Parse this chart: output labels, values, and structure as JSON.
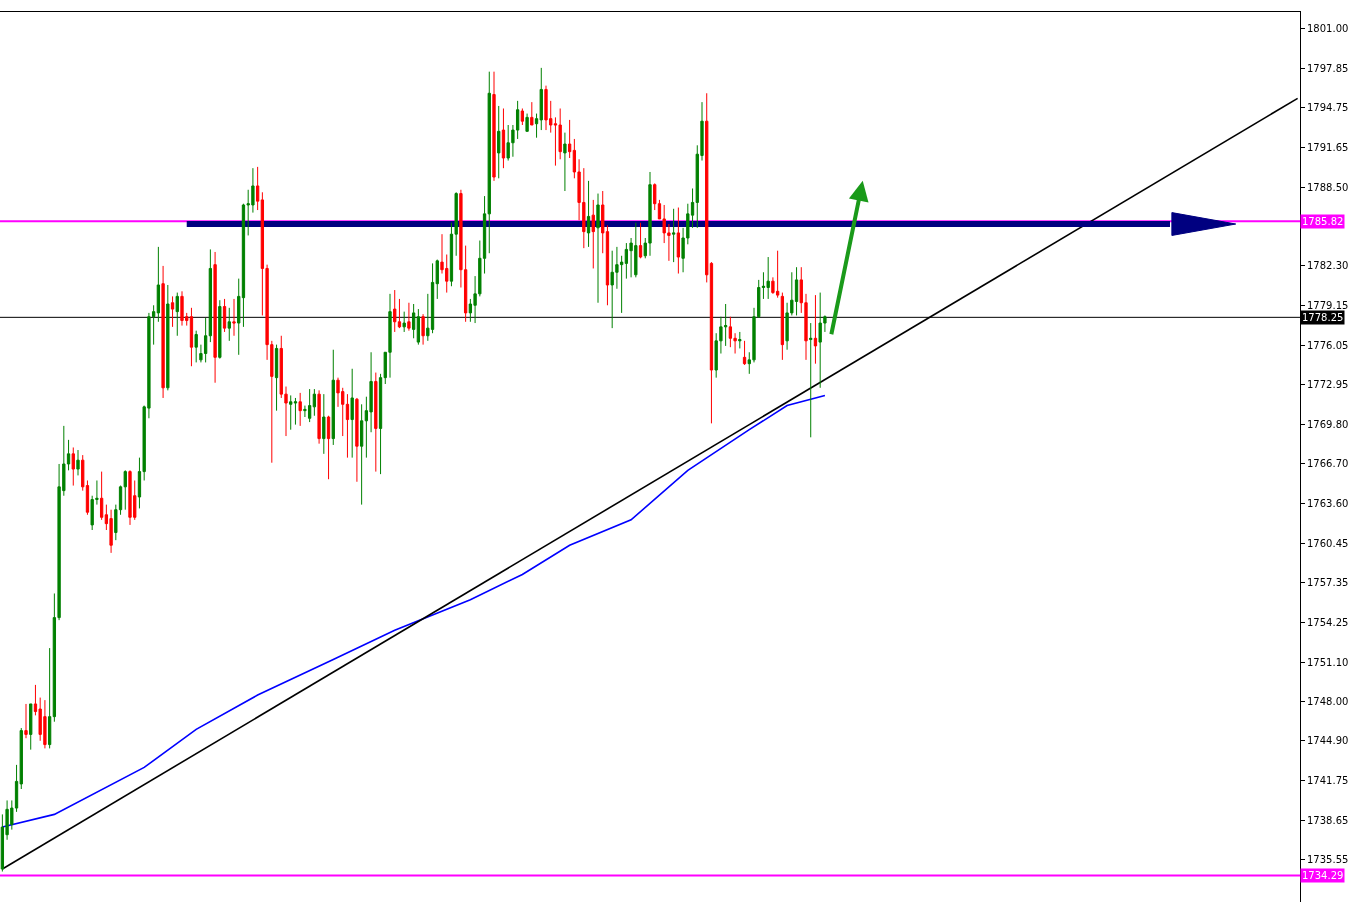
{
  "chart_data": {
    "type": "candlestick",
    "categories": [
      null,
      null,
      null,
      null,
      null,
      null,
      null,
      null,
      null,
      null,
      null,
      null,
      null,
      null,
      null,
      null,
      null,
      null,
      null,
      null,
      null,
      null,
      null,
      null,
      null,
      null,
      null,
      null,
      null,
      null,
      null,
      null,
      null,
      null,
      null,
      null,
      null,
      null,
      null,
      null,
      null,
      null,
      null,
      null,
      null,
      null,
      null,
      null,
      null,
      null,
      null,
      null,
      null,
      null,
      null,
      null,
      null,
      null,
      null,
      null,
      null,
      null,
      null,
      null,
      null,
      null,
      null,
      null,
      null,
      null,
      null,
      null,
      null,
      null,
      null,
      null,
      null,
      null,
      null,
      null,
      null,
      null,
      null,
      null,
      null,
      null,
      null,
      null,
      null,
      null,
      null,
      null,
      null,
      null,
      null,
      null,
      null,
      null,
      null,
      null,
      null,
      null,
      null,
      null,
      null,
      null,
      null,
      null,
      null,
      null,
      null,
      null,
      null,
      null,
      null,
      null,
      null,
      null,
      null,
      null,
      null,
      null,
      null,
      null,
      null,
      null,
      null,
      null,
      null,
      null,
      null,
      null,
      null,
      null,
      null,
      null,
      null,
      null,
      null,
      null,
      null,
      null,
      null,
      null,
      null,
      null,
      null,
      null,
      null,
      null,
      null,
      null,
      null,
      null,
      null,
      null,
      null,
      null,
      null,
      null,
      null,
      null,
      null,
      null,
      null,
      null,
      null,
      null,
      null,
      null,
      null,
      null,
      null,
      null,
      null,
      null,
      null,
      null,
      null,
      null,
      null,
      null,
      null,
      null,
      null,
      null,
      null,
      null,
      null,
      null,
      null,
      null,
      null,
      null,
      null,
      null,
      null,
      null,
      null,
      null,
      null,
      null,
      null,
      null,
      null,
      null,
      null,
      null,
      null,
      null,
      null,
      null,
      null,
      null,
      null,
      null,
      null,
      null,
      null,
      null,
      null,
      null,
      null,
      null,
      null,
      null,
      null,
      null,
      null,
      null,
      null,
      null,
      null,
      null,
      null,
      null,
      null,
      null,
      null,
      null,
      null,
      null,
      null,
      null,
      null,
      null,
      null,
      null,
      null,
      null,
      null,
      null,
      null,
      null,
      null,
      null,
      null,
      null,
      null,
      null,
      null,
      null,
      null,
      null,
      null,
      null,
      null,
      null,
      null,
      null,
      null,
      null,
      null,
      null,
      null
    ],
    "colors": [
      "#008000",
      "#008000",
      "#008000",
      "#008000",
      "#008000",
      "#ff0000",
      "#008000",
      "#ff0000",
      "#ff0000",
      "#ff0000",
      "#008000",
      "#008000",
      "#008000",
      "#008000",
      "#008000",
      "#ff0000",
      "#008000",
      "#ff0000",
      "#ff0000",
      "#008000",
      "#008000",
      "#ff0000",
      "#ff0000",
      "#ff0000",
      "#008000",
      "#008000",
      "#008000",
      "#ff0000",
      "#ff0000",
      "#008000",
      "#008000",
      "#008000",
      "#008000",
      "#008000",
      "#ff0000",
      "#008000",
      "#ff0000",
      "#008000",
      "#ff0000",
      "#ff0000",
      "#ff0000",
      "#008000",
      "#008000",
      "#008000",
      "#008000",
      "#ff0000",
      "#008000",
      "#ff0000",
      "#008000",
      "#ff0000",
      "#008000",
      "#008000",
      "#008000",
      "#008000",
      "#ff0000",
      "#ff0000",
      "#ff0000",
      "#ff0000",
      "#008000",
      "#ff0000",
      "#ff0000",
      "#008000",
      "#008000",
      "#ff0000",
      "#008000",
      "#008000",
      "#008000",
      "#ff0000",
      "#008000",
      "#ff0000",
      "#008000",
      "#ff0000",
      "#ff0000",
      "#ff0000",
      "#008000",
      "#ff0000",
      "#008000",
      "#008000",
      "#008000",
      "#ff0000",
      "#008000",
      "#008000",
      "#008000",
      "#ff0000",
      "#ff0000",
      "#008000",
      "#ff0000",
      "#008000",
      "#008000",
      "#ff0000",
      "#008000",
      "#008000",
      "#008000",
      "#ff0000",
      "#ff0000",
      "#008000",
      "#008000",
      "#ff0000",
      "#ff0000",
      "#008000",
      "#008000",
      "#008000",
      "#008000",
      "#008000",
      "#ff0000",
      "#008000",
      "#ff0000",
      "#008000",
      "#008000",
      "#008000",
      "#ff0000",
      "#008000",
      "#ff0000",
      "#008000",
      "#008000",
      "#ff0000",
      "#ff0000",
      "#ff0000",
      "#ff0000",
      "#008000",
      "#ff0000",
      "#ff0000",
      "#ff0000",
      "#ff0000",
      "#008000",
      "#ff0000",
      "#008000",
      "#ff0000",
      "#ff0000",
      "#008000",
      "#008000",
      "#008000",
      "#008000",
      "#008000",
      "#008000",
      "#ff0000",
      "#008000",
      "#008000",
      "#ff0000",
      "#ff0000",
      "#ff0000",
      "#ff0000",
      "#008000",
      "#ff0000",
      "#008000",
      "#008000",
      "#008000",
      "#008000",
      "#008000",
      "#ff0000",
      "#ff0000",
      "#008000",
      "#008000",
      "#008000",
      "#ff0000",
      "#ff0000",
      "#008000",
      "#ff0000",
      "#008000",
      "#008000",
      "#008000",
      "#008000",
      "#008000",
      "#ff0000",
      "#ff0000",
      "#ff0000",
      "#008000",
      "#008000",
      "#008000",
      "#ff0000",
      "#ff0000",
      "#008000",
      "#ff0000",
      "#008000",
      "#008000",
      null,
      null,
      null,
      null,
      null,
      null,
      null,
      null,
      null,
      null,
      null,
      null,
      null,
      null,
      null,
      null,
      null,
      null,
      null,
      null,
      null,
      null,
      null,
      null,
      null,
      null,
      null,
      null,
      null,
      null,
      null,
      null,
      null,
      null,
      null,
      null,
      null,
      null,
      null,
      null,
      null,
      null,
      null,
      null,
      null,
      null,
      null,
      null,
      null,
      null,
      null,
      null,
      null,
      null,
      null,
      null,
      null,
      null,
      null,
      null,
      null,
      null,
      null,
      null,
      null,
      null,
      null,
      null,
      null,
      null,
      null,
      null,
      null,
      null,
      null,
      null,
      null,
      null,
      null,
      null,
      null,
      null,
      null,
      null,
      null,
      null,
      null,
      null,
      null,
      null,
      null,
      null,
      null,
      null,
      null,
      null,
      null,
      null,
      null,
      null
    ],
    "ohlc": [
      [
        1734.8,
        1739.1,
        1734.6,
        1738.1
      ],
      [
        1737.5,
        1740.2,
        1737.1,
        1739.5
      ],
      [
        1738.3,
        1740.2,
        1737.9,
        1739.6
      ],
      [
        1739.6,
        1743.0,
        1739.3,
        1741.7
      ],
      [
        1741.5,
        1745.9,
        1741.1,
        1745.7
      ],
      [
        1745.7,
        1747.8,
        1745.1,
        1745.4
      ],
      [
        1745.4,
        1747.8,
        1744.2,
        1747.8
      ],
      [
        1747.8,
        1749.3,
        1746.9,
        1747.2
      ],
      [
        1747.4,
        1748.3,
        1744.9,
        1745.4
      ],
      [
        1746.8,
        1748.1,
        1744.3,
        1744.6
      ],
      [
        1744.6,
        1752.2,
        1744.3,
        1746.8
      ],
      [
        1746.8,
        1756.5,
        1746.4,
        1754.6
      ],
      [
        1754.6,
        1766.7,
        1754.4,
        1764.9
      ],
      [
        1764.6,
        1769.7,
        1764.2,
        1766.7
      ],
      [
        1766.7,
        1768.6,
        1766.2,
        1767.5
      ],
      [
        1767.5,
        1768.0,
        1765.0,
        1766.3
      ],
      [
        1766.3,
        1767.8,
        1765.8,
        1767.0
      ],
      [
        1767.0,
        1767.4,
        1764.6,
        1764.9
      ],
      [
        1765.0,
        1765.4,
        1762.7,
        1762.9
      ],
      [
        1761.9,
        1764.2,
        1761.5,
        1763.9
      ],
      [
        1763.9,
        1765.4,
        1763.5,
        1764.0
      ],
      [
        1764.0,
        1766.1,
        1762.3,
        1762.5
      ],
      [
        1762.7,
        1763.5,
        1761.5,
        1762.0
      ],
      [
        1762.4,
        1763.1,
        1759.7,
        1760.3
      ],
      [
        1761.3,
        1763.5,
        1760.7,
        1763.1
      ],
      [
        1763.1,
        1765.0,
        1762.7,
        1764.9
      ],
      [
        1764.9,
        1766.2,
        1763.1,
        1766.1
      ],
      [
        1766.1,
        1766.2,
        1761.9,
        1762.5
      ],
      [
        1764.2,
        1765.4,
        1762.3,
        1762.5
      ],
      [
        1764.1,
        1767.2,
        1763.2,
        1766.1
      ],
      [
        1766.1,
        1771.3,
        1765.4,
        1771.2
      ],
      [
        1771.1,
        1778.6,
        1770.3,
        1778.3
      ],
      [
        1778.3,
        1779.2,
        1776.1,
        1778.7
      ],
      [
        1778.6,
        1783.8,
        1777.9,
        1780.8
      ],
      [
        1780.9,
        1782.3,
        1771.9,
        1772.7
      ],
      [
        1772.7,
        1780.8,
        1772.5,
        1779.3
      ],
      [
        1779.4,
        1779.9,
        1777.5,
        1778.9
      ],
      [
        1778.7,
        1780.2,
        1776.8,
        1779.9
      ],
      [
        1779.9,
        1780.3,
        1777.6,
        1778.0
      ],
      [
        1778.3,
        1778.6,
        1777.6,
        1778.0
      ],
      [
        1778.3,
        1779.0,
        1774.4,
        1775.9
      ],
      [
        1775.9,
        1777.2,
        1774.7,
        1776.9
      ],
      [
        1774.9,
        1776.1,
        1774.7,
        1775.4
      ],
      [
        1775.4,
        1778.2,
        1774.7,
        1776.8
      ],
      [
        1776.8,
        1783.6,
        1776.3,
        1782.1
      ],
      [
        1782.4,
        1783.4,
        1773.1,
        1775.1
      ],
      [
        1775.1,
        1779.6,
        1775.0,
        1779.1
      ],
      [
        1779.1,
        1779.7,
        1777.1,
        1777.4
      ],
      [
        1777.4,
        1779.0,
        1776.4,
        1777.9
      ],
      [
        1777.9,
        1779.7,
        1776.8,
        1777.8
      ],
      [
        1777.8,
        1781.3,
        1775.3,
        1779.9
      ],
      [
        1779.8,
        1787.2,
        1777.5,
        1787.1
      ],
      [
        1787.1,
        1788.3,
        1784.7,
        1787.2
      ],
      [
        1787.1,
        1790.0,
        1786.5,
        1788.6
      ],
      [
        1788.6,
        1790.1,
        1786.7,
        1787.4
      ],
      [
        1787.5,
        1788.1,
        1778.4,
        1782.1
      ],
      [
        1782.1,
        1782.4,
        1774.9,
        1776.1
      ],
      [
        1776.1,
        1776.4,
        1766.8,
        1773.6
      ],
      [
        1773.5,
        1776.1,
        1770.9,
        1775.8
      ],
      [
        1775.8,
        1776.8,
        1771.9,
        1772.2
      ],
      [
        1772.2,
        1772.8,
        1768.9,
        1771.5
      ],
      [
        1771.4,
        1772.1,
        1769.4,
        1771.6
      ],
      [
        1771.5,
        1771.9,
        1769.8,
        1771.6
      ],
      [
        1771.6,
        1772.3,
        1769.7,
        1770.9
      ],
      [
        1770.9,
        1771.3,
        1770.4,
        1771.0
      ],
      [
        1770.3,
        1772.6,
        1770.0,
        1771.3
      ],
      [
        1771.2,
        1772.6,
        1770.5,
        1772.2
      ],
      [
        1772.2,
        1772.5,
        1768.3,
        1768.7
      ],
      [
        1768.7,
        1772.2,
        1767.5,
        1770.4
      ],
      [
        1770.4,
        1770.5,
        1765.5,
        1768.7
      ],
      [
        1768.7,
        1775.7,
        1768.2,
        1773.3
      ],
      [
        1773.3,
        1773.5,
        1771.2,
        1772.3
      ],
      [
        1772.4,
        1772.7,
        1768.9,
        1771.4
      ],
      [
        1771.4,
        1772.2,
        1767.2,
        1770.2
      ],
      [
        1770.2,
        1774.2,
        1767.2,
        1771.9
      ],
      [
        1771.8,
        1771.9,
        1765.3,
        1768.1
      ],
      [
        1768.1,
        1771.4,
        1763.5,
        1770.1
      ],
      [
        1770.1,
        1772.0,
        1767.2,
        1770.9
      ],
      [
        1770.8,
        1775.5,
        1769.2,
        1773.2
      ],
      [
        1773.2,
        1773.9,
        1766.1,
        1769.5
      ],
      [
        1769.5,
        1773.8,
        1765.9,
        1773.5
      ],
      [
        1773.5,
        1775.5,
        1773.0,
        1775.5
      ],
      [
        1775.5,
        1780.1,
        1773.5,
        1778.7
      ],
      [
        1778.9,
        1780.4,
        1777.1,
        1777.9
      ],
      [
        1777.9,
        1779.7,
        1777.4,
        1777.5
      ],
      [
        1777.5,
        1778.7,
        1777.1,
        1777.8
      ],
      [
        1777.9,
        1779.4,
        1777.2,
        1777.4
      ],
      [
        1777.3,
        1779.3,
        1776.6,
        1778.6
      ],
      [
        1776.3,
        1778.9,
        1776.1,
        1778.3
      ],
      [
        1778.3,
        1778.5,
        1776.1,
        1776.8
      ],
      [
        1776.8,
        1780.1,
        1776.4,
        1777.4
      ],
      [
        1777.3,
        1782.5,
        1777.0,
        1781.0
      ],
      [
        1780.9,
        1782.8,
        1779.7,
        1782.7
      ],
      [
        1782.6,
        1784.8,
        1781.7,
        1782.0
      ],
      [
        1782.1,
        1783.2,
        1780.2,
        1781.1
      ],
      [
        1781.1,
        1785.7,
        1780.7,
        1784.8
      ],
      [
        1784.8,
        1788.1,
        1783.1,
        1788.0
      ],
      [
        1788.0,
        1788.3,
        1780.6,
        1782.0
      ],
      [
        1782.0,
        1783.9,
        1777.9,
        1778.6
      ],
      [
        1778.6,
        1779.7,
        1777.9,
        1779.3
      ],
      [
        1779.2,
        1781.5,
        1777.8,
        1780.1
      ],
      [
        1780.1,
        1784.3,
        1779.9,
        1782.9
      ],
      [
        1782.9,
        1787.8,
        1781.7,
        1786.4
      ],
      [
        1786.4,
        1797.6,
        1783.3,
        1795.9
      ],
      [
        1795.8,
        1797.6,
        1789.0,
        1789.3
      ],
      [
        1791.2,
        1794.9,
        1789.2,
        1792.9
      ],
      [
        1793.0,
        1794.7,
        1790.0,
        1790.8
      ],
      [
        1790.8,
        1793.4,
        1790.6,
        1792.0
      ],
      [
        1792.0,
        1793.4,
        1790.9,
        1793.0
      ],
      [
        1793.0,
        1795.3,
        1792.3,
        1794.6
      ],
      [
        1794.5,
        1794.7,
        1793.4,
        1793.7
      ],
      [
        1792.9,
        1794.3,
        1792.9,
        1794.0
      ],
      [
        1794.0,
        1795.2,
        1793.4,
        1793.4
      ],
      [
        1793.5,
        1794.3,
        1792.4,
        1793.9
      ],
      [
        1793.8,
        1797.9,
        1793.0,
        1796.2
      ],
      [
        1796.2,
        1796.5,
        1793.0,
        1793.8
      ],
      [
        1793.9,
        1795.3,
        1792.8,
        1793.4
      ],
      [
        1793.5,
        1794.0,
        1790.2,
        1793.4
      ],
      [
        1793.4,
        1794.7,
        1790.7,
        1791.3
      ],
      [
        1791.2,
        1792.8,
        1788.2,
        1791.9
      ],
      [
        1791.9,
        1793.8,
        1790.8,
        1791.3
      ],
      [
        1791.4,
        1792.3,
        1789.2,
        1789.7
      ],
      [
        1789.7,
        1790.7,
        1785.9,
        1787.3
      ],
      [
        1787.3,
        1790.0,
        1783.7,
        1785.0
      ],
      [
        1784.9,
        1789.0,
        1783.8,
        1786.2
      ],
      [
        1786.3,
        1787.5,
        1782.1,
        1785.0
      ],
      [
        1785.3,
        1788.0,
        1779.4,
        1787.1
      ],
      [
        1787.1,
        1788.2,
        1783.3,
        1784.9
      ],
      [
        1785.0,
        1785.5,
        1779.2,
        1780.8
      ],
      [
        1780.8,
        1783.5,
        1777.4,
        1781.8
      ],
      [
        1781.8,
        1783.8,
        1780.5,
        1782.4
      ],
      [
        1782.4,
        1783.1,
        1778.6,
        1782.6
      ],
      [
        1782.5,
        1784.1,
        1781.3,
        1783.6
      ],
      [
        1783.5,
        1784.5,
        1781.4,
        1784.1
      ],
      [
        1781.6,
        1785.7,
        1781.4,
        1783.9
      ],
      [
        1783.9,
        1785.7,
        1782.9,
        1783.0
      ],
      [
        1783.1,
        1784.5,
        1782.9,
        1784.1
      ],
      [
        1784.1,
        1789.7,
        1783.1,
        1788.7
      ],
      [
        1788.7,
        1788.8,
        1786.7,
        1787.2
      ],
      [
        1787.2,
        1787.5,
        1786.0,
        1786.0
      ],
      [
        1786.0,
        1787.1,
        1784.1,
        1784.9
      ],
      [
        1784.9,
        1785.6,
        1782.7,
        1784.7
      ],
      [
        1784.8,
        1786.8,
        1782.6,
        1784.9
      ],
      [
        1784.9,
        1786.9,
        1781.7,
        1783.0
      ],
      [
        1782.9,
        1785.3,
        1781.8,
        1784.5
      ],
      [
        1784.5,
        1787.2,
        1784.0,
        1786.4
      ],
      [
        1786.3,
        1788.4,
        1785.3,
        1787.3
      ],
      [
        1787.3,
        1791.8,
        1785.3,
        1791.1
      ],
      [
        1791.0,
        1795.2,
        1790.6,
        1793.7
      ],
      [
        1793.7,
        1795.9,
        1781.0,
        1781.6
      ],
      [
        1782.5,
        1782.6,
        1769.9,
        1774.1
      ],
      [
        1774.1,
        1777.0,
        1773.5,
        1776.4
      ],
      [
        1776.4,
        1778.3,
        1775.4,
        1777.5
      ],
      [
        1777.5,
        1779.3,
        1776.0,
        1777.6
      ],
      [
        1777.5,
        1778.3,
        1775.9,
        1776.6
      ],
      [
        1776.6,
        1777.0,
        1775.4,
        1776.4
      ],
      [
        1776.4,
        1777.1,
        1775.8,
        1776.5
      ],
      [
        1775.1,
        1776.4,
        1774.5,
        1774.6
      ],
      [
        1774.6,
        1775.5,
        1773.8,
        1774.9
      ],
      [
        1774.9,
        1779.0,
        1774.7,
        1778.3
      ],
      [
        1778.3,
        1781.2,
        1778.2,
        1780.6
      ],
      [
        1780.6,
        1781.8,
        1779.7,
        1780.7
      ],
      [
        1780.6,
        1783.0,
        1779.7,
        1781.1
      ],
      [
        1781.1,
        1781.4,
        1780.1,
        1780.2
      ],
      [
        1780.3,
        1783.5,
        1779.8,
        1780.0
      ],
      [
        1779.9,
        1780.2,
        1774.9,
        1776.1
      ],
      [
        1776.4,
        1779.4,
        1775.7,
        1778.6
      ],
      [
        1778.6,
        1781.8,
        1778.4,
        1779.6
      ],
      [
        1779.5,
        1782.2,
        1778.4,
        1781.2
      ],
      [
        1781.2,
        1782.2,
        1778.6,
        1779.4
      ],
      [
        1779.4,
        1780.1,
        1774.9,
        1776.4
      ],
      [
        1776.5,
        1777.8,
        1768.8,
        1776.6
      ],
      [
        1776.6,
        1780.0,
        1774.6,
        1776.0
      ],
      [
        1776.3,
        1780.2,
        1772.7,
        1777.8
      ],
      [
        1777.8,
        1778.4,
        1777.1,
        1778.3
      ],
      null,
      null,
      null,
      null,
      null,
      null,
      null,
      null,
      null,
      null,
      null,
      null,
      null,
      null,
      null,
      null,
      null,
      null,
      null,
      null,
      null,
      null,
      null,
      null,
      null,
      null,
      null,
      null,
      null,
      null,
      null,
      null,
      null,
      null,
      null,
      null,
      null,
      null,
      null,
      null,
      null,
      null,
      null,
      null,
      null,
      null,
      null,
      null,
      null,
      null,
      null,
      null,
      null,
      null,
      null,
      null,
      null,
      null,
      null,
      null,
      null,
      null,
      null,
      null,
      null,
      null,
      null,
      null,
      null,
      null,
      null,
      null,
      null,
      null,
      null,
      null,
      null,
      null,
      null,
      null,
      null,
      null,
      null,
      null,
      null,
      null,
      null,
      null,
      null,
      null,
      null,
      null,
      null,
      null,
      null,
      null,
      null,
      null,
      null,
      null
    ],
    "series": [
      {
        "type": "line",
        "color": "#0000ff",
        "values": [
          1738.1,
          null,
          null,
          null,
          null,
          null,
          null,
          null,
          null,
          null,
          null,
          1739.1,
          null,
          null,
          null,
          null,
          null,
          null,
          null,
          null,
          null,
          null,
          null,
          null,
          null,
          null,
          null,
          null,
          null,
          null,
          1742.8,
          null,
          null,
          null,
          null,
          null,
          null,
          null,
          null,
          null,
          null,
          1745.8,
          null,
          null,
          null,
          null,
          null,
          null,
          null,
          null,
          null,
          null,
          null,
          null,
          1748.5,
          null,
          null,
          null,
          null,
          null,
          null,
          null,
          null,
          null,
          null,
          null,
          null,
          null,
          null,
          null,
          1751.3,
          null,
          null,
          null,
          null,
          null,
          null,
          null,
          null,
          null,
          null,
          null,
          null,
          1753.6,
          null,
          null,
          null,
          null,
          null,
          null,
          null,
          null,
          null,
          null,
          null,
          null,
          null,
          null,
          null,
          1756.0,
          null,
          null,
          null,
          null,
          null,
          null,
          null,
          null,
          null,
          null,
          1758.0,
          null,
          null,
          null,
          null,
          null,
          null,
          null,
          null,
          null,
          1760.3,
          null,
          null,
          null,
          null,
          null,
          null,
          null,
          null,
          null,
          null,
          null,
          null,
          1762.3,
          null,
          null,
          null,
          null,
          null,
          null,
          null,
          null,
          null,
          null,
          null,
          1766.2,
          null,
          null,
          null,
          null,
          null,
          null,
          null,
          null,
          null,
          null,
          null,
          null,
          1769.4,
          null,
          null,
          null,
          null,
          null,
          null,
          null,
          1771.3,
          null,
          null,
          null,
          null,
          null,
          null,
          null,
          1772.1,
          null,
          null,
          null,
          null,
          null,
          null,
          null,
          null,
          null,
          null,
          null,
          null,
          null,
          null,
          null,
          null,
          null,
          null,
          null,
          null,
          null,
          null,
          null,
          null,
          null,
          null,
          null,
          null,
          null,
          null,
          null,
          null,
          null,
          null,
          null,
          null,
          null,
          null,
          null,
          null,
          null,
          null,
          null,
          null,
          null,
          null,
          null,
          null,
          null,
          null,
          null,
          null,
          null,
          null,
          null,
          null,
          null,
          null,
          null,
          null,
          null,
          null,
          null,
          null,
          null,
          null,
          null,
          null,
          null,
          null,
          null,
          null,
          null,
          null,
          null,
          null,
          null,
          null,
          null,
          null,
          null,
          null,
          null,
          null,
          null,
          null,
          null,
          null,
          null,
          null,
          null,
          null,
          null,
          null,
          null,
          null,
          null,
          null,
          null,
          null
        ]
      },
      {
        "type": "line",
        "color": "#000000",
        "values": [
          1734.8,
          null,
          null,
          null,
          null,
          null,
          null,
          null,
          null,
          null,
          null,
          null,
          null,
          null,
          null,
          null,
          null,
          null,
          null,
          null,
          null,
          null,
          null,
          null,
          null,
          null,
          null,
          null,
          null,
          null,
          null,
          null,
          null,
          null,
          null,
          null,
          null,
          null,
          null,
          null,
          null,
          null,
          null,
          null,
          null,
          null,
          null,
          null,
          null,
          null,
          null,
          null,
          null,
          null,
          null,
          null,
          null,
          null,
          null,
          null,
          null,
          null,
          null,
          null,
          null,
          null,
          null,
          null,
          null,
          null,
          null,
          null,
          null,
          null,
          null,
          null,
          null,
          null,
          null,
          null,
          null,
          null,
          null,
          null,
          null,
          null,
          null,
          null,
          null,
          null,
          null,
          null,
          null,
          null,
          null,
          null,
          null,
          null,
          null,
          null,
          null,
          null,
          null,
          null,
          null,
          null,
          null,
          null,
          null,
          null,
          null,
          null,
          null,
          null,
          null,
          null,
          null,
          null,
          null,
          null,
          null,
          null,
          null,
          null,
          null,
          null,
          null,
          null,
          null,
          null,
          null,
          null,
          null,
          null,
          null,
          null,
          null,
          null,
          null,
          null,
          null,
          null,
          null,
          null,
          null,
          null,
          null,
          null,
          null,
          null,
          null,
          null,
          null,
          null,
          null,
          null,
          null,
          null,
          null,
          null,
          null,
          null,
          null,
          null,
          null,
          null,
          null,
          null,
          null,
          null,
          null,
          null,
          null,
          null,
          null,
          null,
          null,
          null,
          null,
          null,
          null,
          null,
          null,
          null,
          null,
          null,
          null,
          null,
          null,
          null,
          null,
          null,
          null,
          null,
          null,
          null,
          null,
          null,
          null,
          null,
          null,
          null,
          null,
          null,
          null,
          null,
          null,
          null,
          null,
          null,
          null,
          null,
          null,
          null,
          null,
          null,
          null,
          null,
          null,
          null,
          null,
          null,
          null,
          null,
          null,
          null,
          null,
          null,
          null,
          null,
          null,
          null,
          null,
          null,
          null,
          null,
          null,
          null,
          null,
          null,
          null,
          null,
          null,
          null,
          null,
          null,
          null,
          null,
          null,
          null,
          null,
          null,
          null,
          null,
          null,
          null,
          null,
          null,
          null,
          null,
          null,
          null,
          null,
          null,
          null,
          null,
          null,
          null,
          null,
          null,
          null,
          null,
          null,
          null,
          1795.5
        ]
      },
      {
        "type": "line",
        "color": "#000080",
        "values": [
          null,
          null,
          null,
          null,
          null,
          null,
          null,
          null,
          null,
          null,
          null,
          null,
          null,
          null,
          null,
          null,
          null,
          null,
          null,
          null,
          null,
          null,
          null,
          null,
          null,
          null,
          null,
          null,
          null,
          null,
          null,
          null,
          null,
          null,
          null,
          null,
          null,
          null,
          null,
          1785.6,
          null,
          null,
          null,
          null,
          null,
          null,
          null,
          null,
          null,
          null,
          null,
          null,
          null,
          null,
          null,
          null,
          null,
          null,
          null,
          null,
          null,
          null,
          null,
          null,
          null,
          null,
          null,
          null,
          null,
          null,
          null,
          null,
          null,
          null,
          null,
          null,
          null,
          null,
          null,
          null,
          null,
          null,
          null,
          null,
          null,
          null,
          null,
          null,
          null,
          null,
          null,
          null,
          null,
          null,
          null,
          null,
          null,
          null,
          null,
          null,
          null,
          null,
          null,
          null,
          null,
          null,
          null,
          null,
          null,
          null,
          null,
          null,
          null,
          null,
          null,
          null,
          null,
          null,
          null,
          null,
          null,
          null,
          null,
          null,
          null,
          null,
          null,
          null,
          null,
          null,
          null,
          null,
          null,
          null,
          null,
          null,
          null,
          null,
          null,
          null,
          null,
          null,
          null,
          null,
          null,
          null,
          null,
          null,
          null,
          null,
          null,
          null,
          null,
          null,
          null,
          null,
          null,
          null,
          null,
          null,
          null,
          null,
          null,
          null,
          null,
          null,
          null,
          null,
          null,
          null,
          null,
          null,
          null,
          null,
          null,
          null,
          null,
          null,
          null,
          null,
          null,
          null,
          null,
          null,
          null,
          null,
          null,
          null,
          null,
          null,
          null,
          null,
          null,
          null,
          null,
          null,
          null,
          null,
          null,
          null,
          null,
          null,
          null,
          null,
          null,
          null,
          null,
          null,
          null,
          null,
          null,
          null,
          null,
          null,
          null,
          null,
          null,
          null,
          null,
          null,
          null,
          null,
          null,
          null,
          null,
          null,
          null,
          null,
          null,
          null,
          null,
          null,
          null,
          null,
          null,
          null,
          null,
          null,
          null,
          null,
          null,
          null,
          null,
          null,
          null,
          null,
          null,
          1785.6,
          null,
          null,
          null,
          null,
          null,
          null,
          null,
          null,
          null,
          null,
          null,
          null,
          null,
          null,
          null,
          null,
          null,
          null,
          null,
          null,
          null,
          null,
          null,
          null,
          null,
          null,
          null
        ]
      }
    ],
    "ylim": [
      1732.2,
      1802.3
    ],
    "yticks": [
      {
        "value": 1801,
        "label": "1801.00"
      },
      1797.85,
      1794.75,
      1791.65,
      {
        "value": 1788.5,
        "label": "1788.50"
      },
      {
        "value": 1782.3,
        "label": "1782.30"
      },
      1779.15,
      1776.05,
      1772.95,
      {
        "value": 1769.8,
        "label": "1769.80"
      },
      {
        "value": 1766.7,
        "label": "1766.70"
      },
      {
        "value": 1763.6,
        "label": "1763.60"
      },
      1760.45,
      1757.35,
      1754.25,
      {
        "value": 1751.1,
        "label": "1751.10"
      },
      {
        "value": 1748,
        "label": "1748.00"
      },
      {
        "value": 1744.9,
        "label": "1744.90"
      },
      1741.75,
      1738.65,
      1735.55
    ],
    "ref_lines": [
      {
        "axis": "y",
        "value": 1785.82,
        "label": "1785.82",
        "color": "#ff00ff"
      },
      {
        "axis": "y",
        "value": 1778.25,
        "label": "1778.25",
        "color": "#000000"
      },
      {
        "axis": "y",
        "value": 1734.29,
        "label": "1734.29",
        "color": "#ff00ff"
      }
    ],
    "tick_labels": "y"
  }
}
